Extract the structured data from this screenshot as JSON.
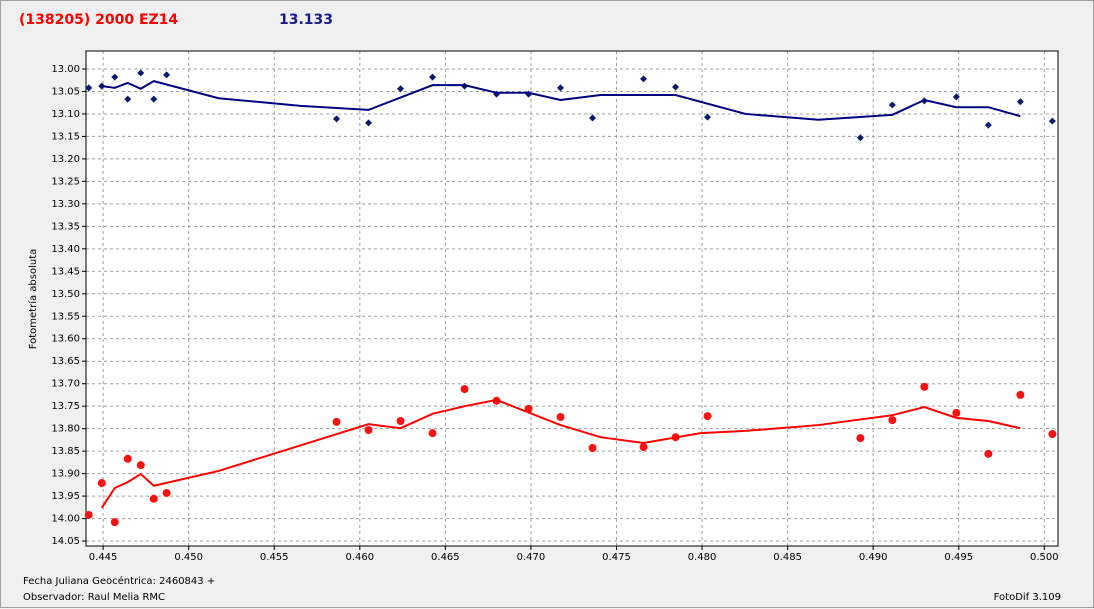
{
  "chart_data": {
    "type": "scatter",
    "title": "(138205) 2000 EZ14",
    "subtitle": "13.133",
    "y_label": "Fotometría absoluta",
    "x_label": "Fecha Juliana Geocéntrica: 2460843 +",
    "observer": "Observador: Raul Melia RMC",
    "software": "FotoDif 3.109",
    "xlim": [
      0.444,
      0.5008
    ],
    "ylim": [
      12.96,
      14.061
    ],
    "y_inverted": true,
    "grid": true,
    "xticks": [
      0.445,
      {
        "value": 0.45,
        "label": "0.450"
      },
      0.455,
      {
        "value": 0.46,
        "label": "0.460"
      },
      0.465,
      {
        "value": 0.47,
        "label": "0.470"
      },
      0.475,
      {
        "value": 0.48,
        "label": "0.480"
      },
      0.485,
      {
        "value": 0.49,
        "label": "0.490"
      },
      0.495,
      {
        "value": 0.5,
        "label": "0.500"
      }
    ],
    "yticks": [
      {
        "value": 13.0,
        "label": "13.00"
      },
      13.05,
      {
        "value": 13.1,
        "label": "13.10"
      },
      13.15,
      {
        "value": 13.2,
        "label": "13.20"
      },
      13.25,
      {
        "value": 13.3,
        "label": "13.30"
      },
      13.35,
      {
        "value": 13.4,
        "label": "13.40"
      },
      13.45,
      {
        "value": 13.5,
        "label": "13.50"
      },
      13.55,
      {
        "value": 13.6,
        "label": "13.60"
      },
      13.65,
      {
        "value": 13.7,
        "label": "13.70"
      },
      13.75,
      {
        "value": 13.8,
        "label": "13.80"
      },
      13.85,
      {
        "value": 13.9,
        "label": "13.90"
      },
      13.95,
      {
        "value": 14.0,
        "label": "14.00"
      },
      14.05
    ],
    "series": [
      {
        "mode": "markers",
        "marker": "diamond",
        "color": "#0a1a6e",
        "x": [
          0.44416,
          0.44492,
          0.44568,
          0.44644,
          0.4472,
          0.44796,
          0.44871,
          0.45864,
          0.46051,
          0.46238,
          0.46425,
          0.46612,
          0.46799,
          0.46986,
          0.47173,
          0.4736,
          0.47658,
          0.47845,
          0.48032,
          0.48925,
          0.49112,
          0.49299,
          0.49486,
          0.49673,
          0.4986,
          0.50047
        ],
        "values": [
          13.042,
          13.038,
          13.018,
          13.067,
          13.009,
          13.067,
          13.013,
          13.111,
          13.12,
          13.044,
          13.018,
          13.038,
          13.056,
          13.056,
          13.042,
          13.109,
          13.022,
          13.04,
          13.107,
          13.153,
          13.08,
          13.071,
          13.062,
          13.125,
          13.073,
          13.116
        ]
      },
      {
        "mode": "line",
        "color": "#000080",
        "x": [
          0.44492,
          0.44568,
          0.44644,
          0.4472,
          0.44796,
          0.45175,
          0.45654,
          0.46051,
          0.46425,
          0.46612,
          0.46799,
          0.46986,
          0.47173,
          0.47407,
          0.47845,
          0.48254,
          0.4868,
          0.49112,
          0.49299,
          0.49486,
          0.49673,
          0.4986
        ],
        "values": [
          13.038,
          13.042,
          13.031,
          13.044,
          13.027,
          13.065,
          13.082,
          13.091,
          13.036,
          13.036,
          13.053,
          13.053,
          13.069,
          13.058,
          13.058,
          13.1,
          13.113,
          13.102,
          13.069,
          13.085,
          13.085,
          13.105
        ]
      },
      {
        "mode": "markers",
        "marker": "circle",
        "color": "#ff1010",
        "x": [
          0.44416,
          0.44492,
          0.44568,
          0.44644,
          0.4472,
          0.44796,
          0.44871,
          0.45864,
          0.46051,
          0.46238,
          0.46425,
          0.46612,
          0.46799,
          0.46986,
          0.47173,
          0.4736,
          0.47658,
          0.47845,
          0.48032,
          0.48925,
          0.49112,
          0.49299,
          0.49486,
          0.49673,
          0.4986,
          0.50047
        ],
        "values": [
          13.992,
          13.921,
          14.008,
          13.867,
          13.881,
          13.956,
          13.943,
          13.785,
          13.803,
          13.783,
          13.81,
          13.712,
          13.738,
          13.756,
          13.774,
          13.843,
          13.841,
          13.819,
          13.772,
          13.821,
          13.781,
          13.707,
          13.765,
          13.856,
          13.725,
          13.812
        ]
      },
      {
        "mode": "line",
        "color": "#ff0000",
        "x": [
          0.44492,
          0.44568,
          0.44644,
          0.4472,
          0.44796,
          0.45175,
          0.46051,
          0.46238,
          0.46425,
          0.46612,
          0.46799,
          0.47173,
          0.47407,
          0.47658,
          0.47991,
          0.48254,
          0.4868,
          0.49112,
          0.49299,
          0.49486,
          0.49673,
          0.4986
        ],
        "values": [
          13.976,
          13.932,
          13.919,
          13.901,
          13.927,
          13.894,
          13.79,
          13.799,
          13.767,
          13.75,
          13.736,
          13.792,
          13.819,
          13.832,
          13.81,
          13.805,
          13.792,
          13.77,
          13.752,
          13.776,
          13.783,
          13.799
        ]
      }
    ]
  }
}
